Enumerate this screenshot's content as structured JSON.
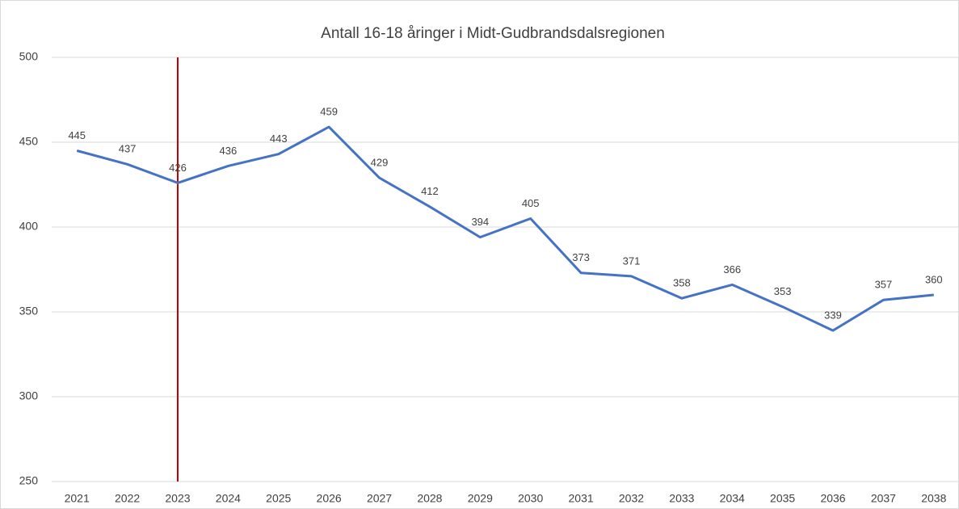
{
  "chart_data": {
    "type": "line",
    "title": "Antall 16-18 åringer i Midt-Gudbrandsdalsregionen",
    "categories": [
      "2021",
      "2022",
      "2023",
      "2024",
      "2025",
      "2026",
      "2027",
      "2028",
      "2029",
      "2030",
      "2031",
      "2032",
      "2033",
      "2034",
      "2035",
      "2036",
      "2037",
      "2038"
    ],
    "series": [
      {
        "name": "Antall",
        "color": "#4472c4",
        "values": [
          445,
          437,
          426,
          436,
          443,
          459,
          429,
          412,
          394,
          405,
          373,
          371,
          358,
          366,
          353,
          339,
          357,
          360
        ]
      }
    ],
    "ylim": [
      250,
      500
    ],
    "yticks": [
      250,
      300,
      350,
      400,
      450,
      500
    ],
    "grid": true,
    "vline": {
      "category": "2023",
      "color": "#c00000"
    }
  }
}
